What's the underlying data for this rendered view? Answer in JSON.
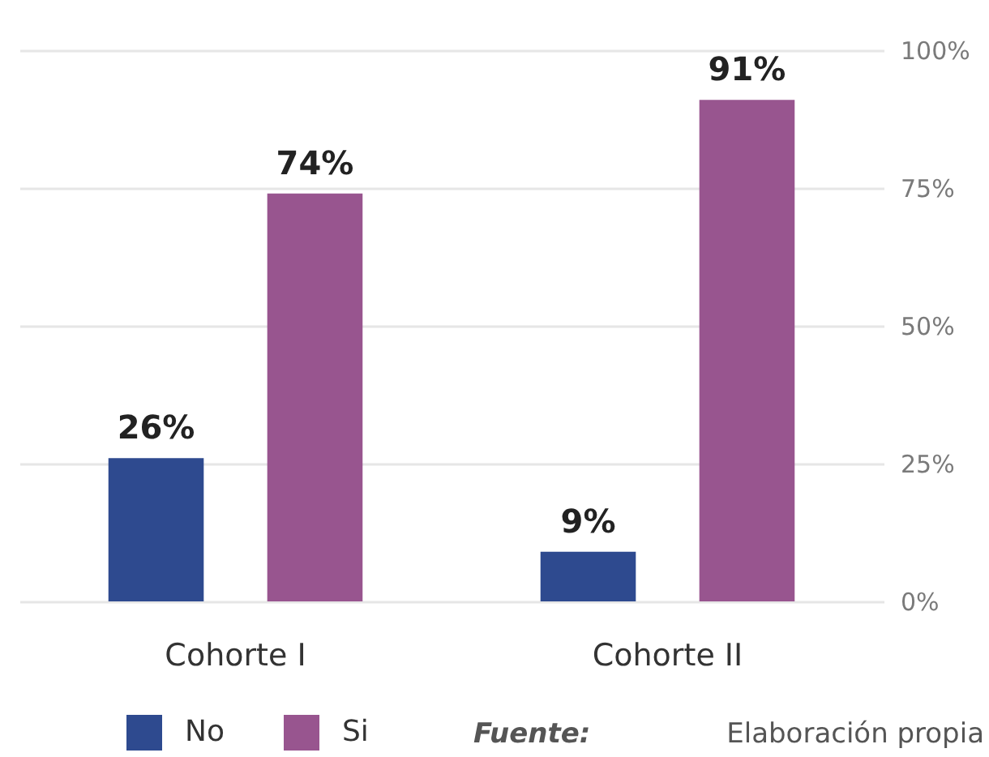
{
  "chart_data": {
    "type": "bar",
    "categories": [
      "Cohorte I",
      "Cohorte II"
    ],
    "series": [
      {
        "name": "No",
        "color": "#2e4a8f",
        "values": [
          26,
          9
        ],
        "value_labels": [
          "26%",
          "9%"
        ]
      },
      {
        "name": "Si",
        "color": "#98558f",
        "values": [
          74,
          91
        ],
        "value_labels": [
          "74%",
          "91%"
        ]
      }
    ],
    "ylim": [
      0,
      100
    ],
    "yticks": [
      {
        "value": 0,
        "label": "0%"
      },
      {
        "value": 25,
        "label": "25%"
      },
      {
        "value": 50,
        "label": "50%"
      },
      {
        "value": 75,
        "label": "75%"
      },
      {
        "value": 100,
        "label": "100%"
      }
    ],
    "grid": "y",
    "legend": "bottom left",
    "annotations": [
      "Fuente: Elaboración propia"
    ]
  }
}
